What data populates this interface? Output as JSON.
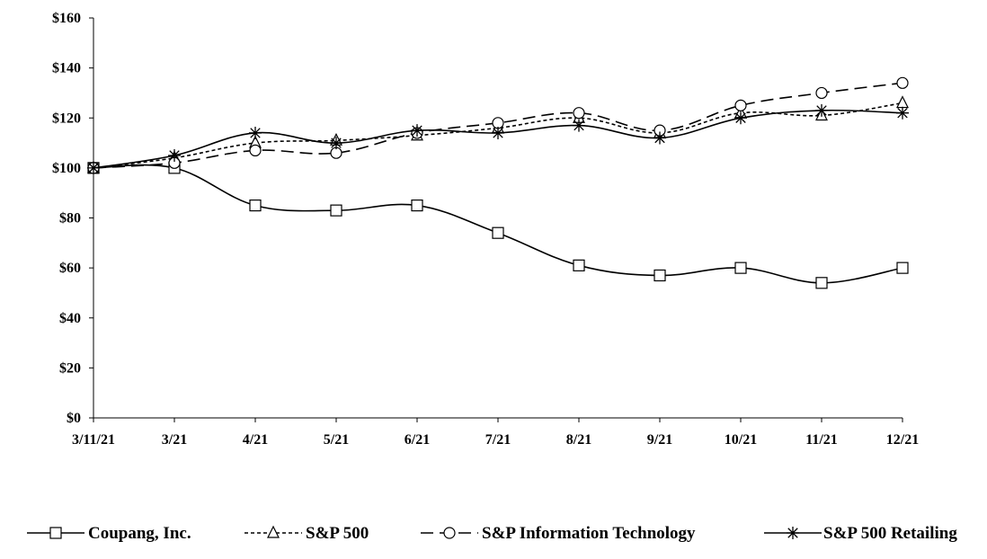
{
  "chart_data": {
    "type": "line",
    "title": "",
    "xlabel": "",
    "ylabel": "",
    "categories": [
      "3/11/21",
      "3/21",
      "4/21",
      "5/21",
      "6/21",
      "7/21",
      "8/21",
      "9/21",
      "10/21",
      "11/21",
      "12/21"
    ],
    "y_ticks": [
      "$0",
      "$20",
      "$40",
      "$60",
      "$80",
      "$100",
      "$120",
      "$140",
      "$160"
    ],
    "ylim": [
      0,
      160
    ],
    "grid": false,
    "legend_position": "bottom",
    "series": [
      {
        "name": "Coupang, Inc.",
        "marker": "square",
        "dash": "solid",
        "values": [
          100,
          100,
          85,
          83,
          85,
          74,
          61,
          57,
          60,
          54,
          60
        ]
      },
      {
        "name": "S&P 500",
        "marker": "triangle",
        "dash": "short",
        "values": [
          100,
          104,
          110,
          111,
          113,
          116,
          120,
          114,
          122,
          121,
          126
        ]
      },
      {
        "name": "S&P Information Technology",
        "marker": "circle",
        "dash": "long",
        "values": [
          100,
          102,
          107,
          106,
          114,
          118,
          122,
          115,
          125,
          130,
          134
        ]
      },
      {
        "name": "S&P 500 Retailing",
        "marker": "star",
        "dash": "solid",
        "values": [
          100,
          105,
          114,
          110,
          115,
          114,
          117,
          112,
          120,
          123,
          122
        ]
      }
    ]
  }
}
